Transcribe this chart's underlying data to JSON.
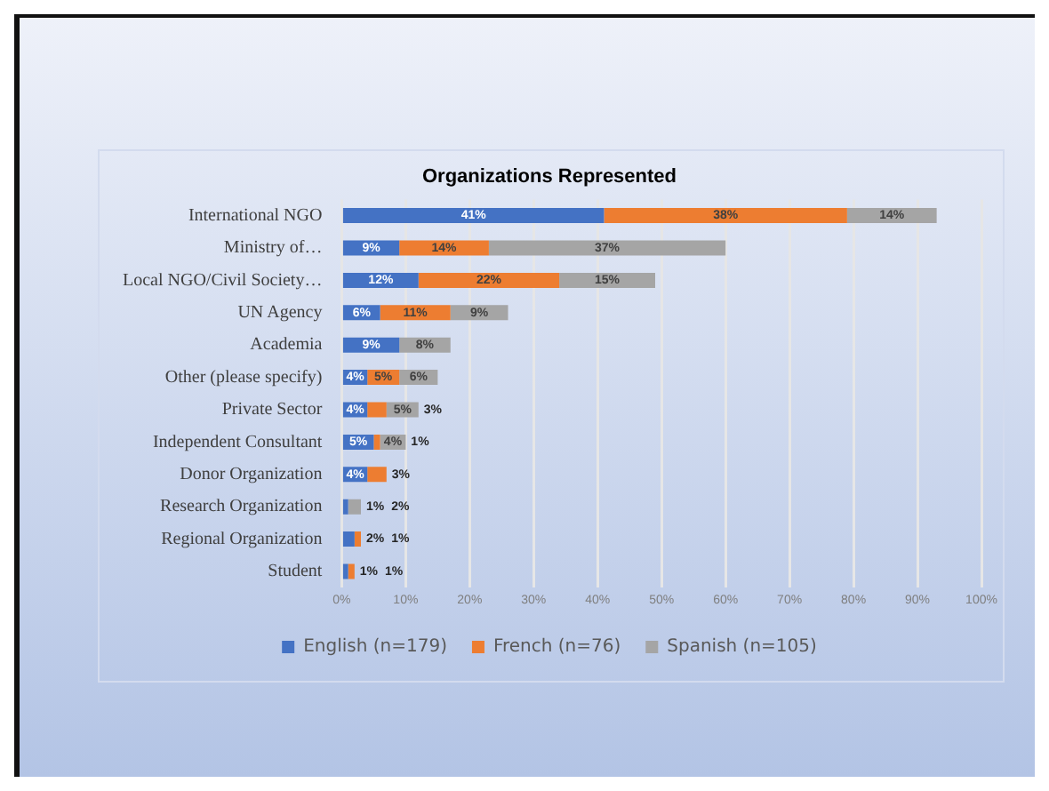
{
  "chart_data": {
    "type": "bar",
    "orientation": "horizontal",
    "stacked": true,
    "title": "Organizations Represented",
    "categories": [
      "International NGO",
      "Ministry of…",
      "Local NGO/Civil Society…",
      "UN Agency",
      "Academia",
      "Other (please specify)",
      "Private Sector",
      "Independent Consultant",
      "Donor Organization",
      "Research Organization",
      "Regional Organization",
      "Student"
    ],
    "series": [
      {
        "name": "English (n=179)",
        "color": "#4472c4",
        "values": [
          41,
          9,
          12,
          6,
          9,
          4,
          4,
          5,
          4,
          1,
          2,
          1
        ],
        "value_labels": [
          "41%",
          "9%",
          "12%",
          "6%",
          "9%",
          "4%",
          "4%",
          "5%",
          "4%",
          "1%",
          "2%",
          "1%"
        ]
      },
      {
        "name": "French (n=76)",
        "color": "#ed7d31",
        "values": [
          38,
          14,
          22,
          11,
          null,
          5,
          3,
          1,
          3,
          null,
          1,
          1
        ],
        "value_labels": [
          "38%",
          "14%",
          "22%",
          "11%",
          null,
          "5%",
          "3%",
          "1%",
          "3%",
          null,
          "1%",
          "1%"
        ]
      },
      {
        "name": "Spanish (n=105)",
        "color": "#a5a5a5",
        "values": [
          14,
          37,
          15,
          9,
          8,
          6,
          5,
          4,
          null,
          2,
          null,
          null
        ],
        "value_labels": [
          "14%",
          "37%",
          "15%",
          "9%",
          "8%",
          "6%",
          "5%",
          "4%",
          null,
          "2%",
          null,
          null
        ]
      }
    ],
    "xlim": [
      0,
      100
    ],
    "xticks": [
      {
        "value": 0,
        "label": "0%"
      },
      {
        "value": 10,
        "label": "10%"
      },
      {
        "value": 20,
        "label": "20%"
      },
      {
        "value": 30,
        "label": "30%"
      },
      {
        "value": 40,
        "label": "40%"
      },
      {
        "value": 50,
        "label": "50%"
      },
      {
        "value": 60,
        "label": "60%"
      },
      {
        "value": 70,
        "label": "70%"
      },
      {
        "value": 80,
        "label": "80%"
      },
      {
        "value": 90,
        "label": "90%"
      },
      {
        "value": 100,
        "label": "100%"
      }
    ],
    "grid": "x",
    "legend": "bottom"
  }
}
